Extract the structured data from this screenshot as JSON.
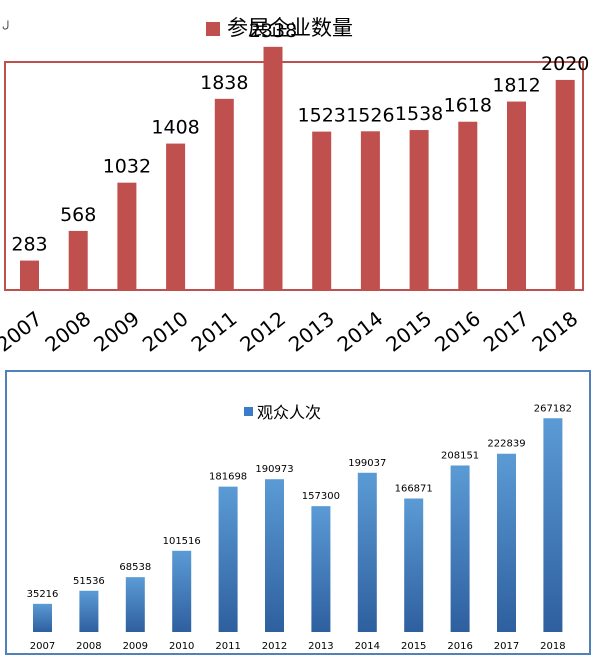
{
  "stray_mark": "ل",
  "chart_data": [
    {
      "type": "bar",
      "title": "",
      "xlabel": "",
      "ylabel": "",
      "categories": [
        "2007",
        "2008",
        "2009",
        "2010",
        "2011",
        "2012",
        "2013",
        "2014",
        "2015",
        "2016",
        "2017",
        "2018"
      ],
      "series": [
        {
          "name": "参展企业数量",
          "values": [
            283,
            568,
            1032,
            1408,
            1838,
            2338,
            1523,
            1526,
            1538,
            1618,
            1812,
            2020
          ]
        }
      ],
      "ylim": [
        0,
        2500
      ],
      "grid": false,
      "legend_position": "top",
      "colors": {
        "bar": "#c0504d",
        "frame": "#c0504d",
        "text": "#000000"
      }
    },
    {
      "type": "bar",
      "title": "",
      "xlabel": "",
      "ylabel": "",
      "categories": [
        "2007",
        "2008",
        "2009",
        "2010",
        "2011",
        "2012",
        "2013",
        "2014",
        "2015",
        "2016",
        "2017",
        "2018"
      ],
      "series": [
        {
          "name": "观众人次",
          "values": [
            35216,
            51536,
            68538,
            101516,
            181698,
            190973,
            157300,
            199037,
            166871,
            208151,
            222839,
            267182
          ]
        }
      ],
      "ylim": [
        0,
        280000
      ],
      "grid": false,
      "legend_position": "top",
      "colors": {
        "bar": "#3a7cc8",
        "bar_light": "#5b9bd5",
        "bar_dark": "#2e5f9e",
        "frame": "#4f81bd",
        "text": "#000000"
      }
    }
  ]
}
